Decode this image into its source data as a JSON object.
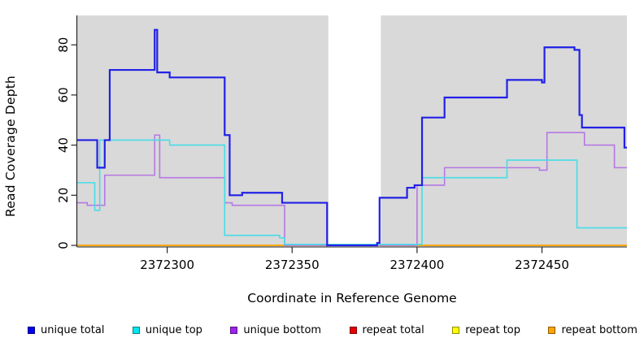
{
  "figure": {
    "ylabel": "Read Coverage Depth",
    "xlabel": "Coordinate in Reference Genome",
    "background_color": "#ffffff",
    "plot_background_color": "#d9d9d9",
    "axis_color": "#262626"
  },
  "chart_data": {
    "type": "line",
    "subtype": "step",
    "title": "",
    "xlabel": "Coordinate in Reference Genome",
    "ylabel": "Read Coverage Depth",
    "xlim": [
      2372264,
      2372484
    ],
    "ylim": [
      0,
      92
    ],
    "x_ticks": [
      2372300,
      2372350,
      2372400,
      2372450
    ],
    "y_ticks": [
      0,
      20,
      40,
      60,
      80
    ],
    "grid": false,
    "legend_position": "bottom",
    "masked_region": {
      "start": 2372364.5,
      "end": 2372385.5,
      "color": "#ffffff"
    },
    "series": [
      {
        "name": "unique total",
        "color": "#2121e6",
        "legend_color": "#0000ee",
        "line_width": 2.2,
        "steps": [
          [
            2372264,
            42
          ],
          [
            2372272,
            31
          ],
          [
            2372275,
            42
          ],
          [
            2372277,
            70
          ],
          [
            2372295,
            86
          ],
          [
            2372296,
            69
          ],
          [
            2372301,
            67
          ],
          [
            2372323,
            44
          ],
          [
            2372325,
            20
          ],
          [
            2372330,
            21
          ],
          [
            2372346,
            17
          ],
          [
            2372364,
            0
          ],
          [
            2372384,
            1
          ],
          [
            2372385,
            19
          ],
          [
            2372396,
            23
          ],
          [
            2372399,
            24
          ],
          [
            2372402,
            51
          ],
          [
            2372411,
            59
          ],
          [
            2372436,
            66
          ],
          [
            2372450,
            65
          ],
          [
            2372451,
            79
          ],
          [
            2372463,
            78
          ],
          [
            2372465,
            52
          ],
          [
            2372466,
            47
          ],
          [
            2372483,
            39
          ]
        ]
      },
      {
        "name": "unique top",
        "color": "#46dce8",
        "legend_color": "#00e5ee",
        "line_width": 1.6,
        "steps": [
          [
            2372264,
            25
          ],
          [
            2372271,
            14
          ],
          [
            2372273,
            42
          ],
          [
            2372301,
            40
          ],
          [
            2372323,
            4
          ],
          [
            2372345,
            3
          ],
          [
            2372347,
            0.4
          ],
          [
            2372402,
            27
          ],
          [
            2372436,
            34
          ],
          [
            2372464,
            7
          ]
        ]
      },
      {
        "name": "unique bottom",
        "color": "#b678e4",
        "legend_color": "#a020f0",
        "line_width": 1.6,
        "steps": [
          [
            2372264,
            17
          ],
          [
            2372268,
            16
          ],
          [
            2372275,
            28
          ],
          [
            2372295,
            44
          ],
          [
            2372297,
            27
          ],
          [
            2372323,
            17
          ],
          [
            2372326,
            16
          ],
          [
            2372347,
            0
          ],
          [
            2372400,
            24
          ],
          [
            2372411,
            31
          ],
          [
            2372449,
            30
          ],
          [
            2372452,
            45
          ],
          [
            2372467,
            40
          ],
          [
            2372479,
            31
          ]
        ]
      },
      {
        "name": "repeat total",
        "color": "#e60000",
        "legend_color": "#e60000",
        "line_width": 1.4,
        "steps": [
          [
            2372264,
            0
          ]
        ]
      },
      {
        "name": "repeat top",
        "color": "#ffff00",
        "legend_color": "#ffff00",
        "line_width": 1.4,
        "steps": [
          [
            2372264,
            0
          ]
        ]
      },
      {
        "name": "repeat bottom",
        "color": "#ffa500",
        "legend_color": "#ffa500",
        "line_width": 1.8,
        "steps": [
          [
            2372264,
            0
          ]
        ]
      }
    ],
    "draw_order": [
      3,
      4,
      5,
      2,
      1,
      0
    ],
    "legend": [
      {
        "label": "unique total"
      },
      {
        "label": "unique top"
      },
      {
        "label": "unique bottom"
      },
      {
        "label": "repeat total"
      },
      {
        "label": "repeat top"
      },
      {
        "label": "repeat bottom"
      }
    ]
  }
}
